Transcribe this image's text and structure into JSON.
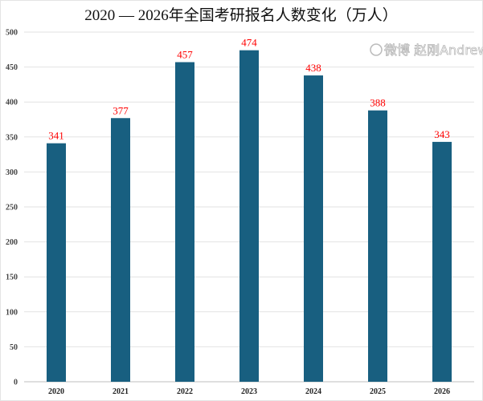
{
  "chart_data": {
    "type": "bar",
    "title": "2020 — 2026年全国考研报名人数变化（万人）",
    "categories": [
      "2020",
      "2021",
      "2022",
      "2023",
      "2024",
      "2025",
      "2026"
    ],
    "values": [
      341,
      377,
      457,
      474,
      438,
      388,
      343
    ],
    "ylim": [
      0,
      500
    ],
    "yticks": [
      0,
      50,
      100,
      150,
      200,
      250,
      300,
      350,
      400,
      450,
      500
    ],
    "grid": true,
    "bar_color": "#185f80",
    "label_color": "#ff0000"
  },
  "watermark": "微博 赵刚Andrew"
}
